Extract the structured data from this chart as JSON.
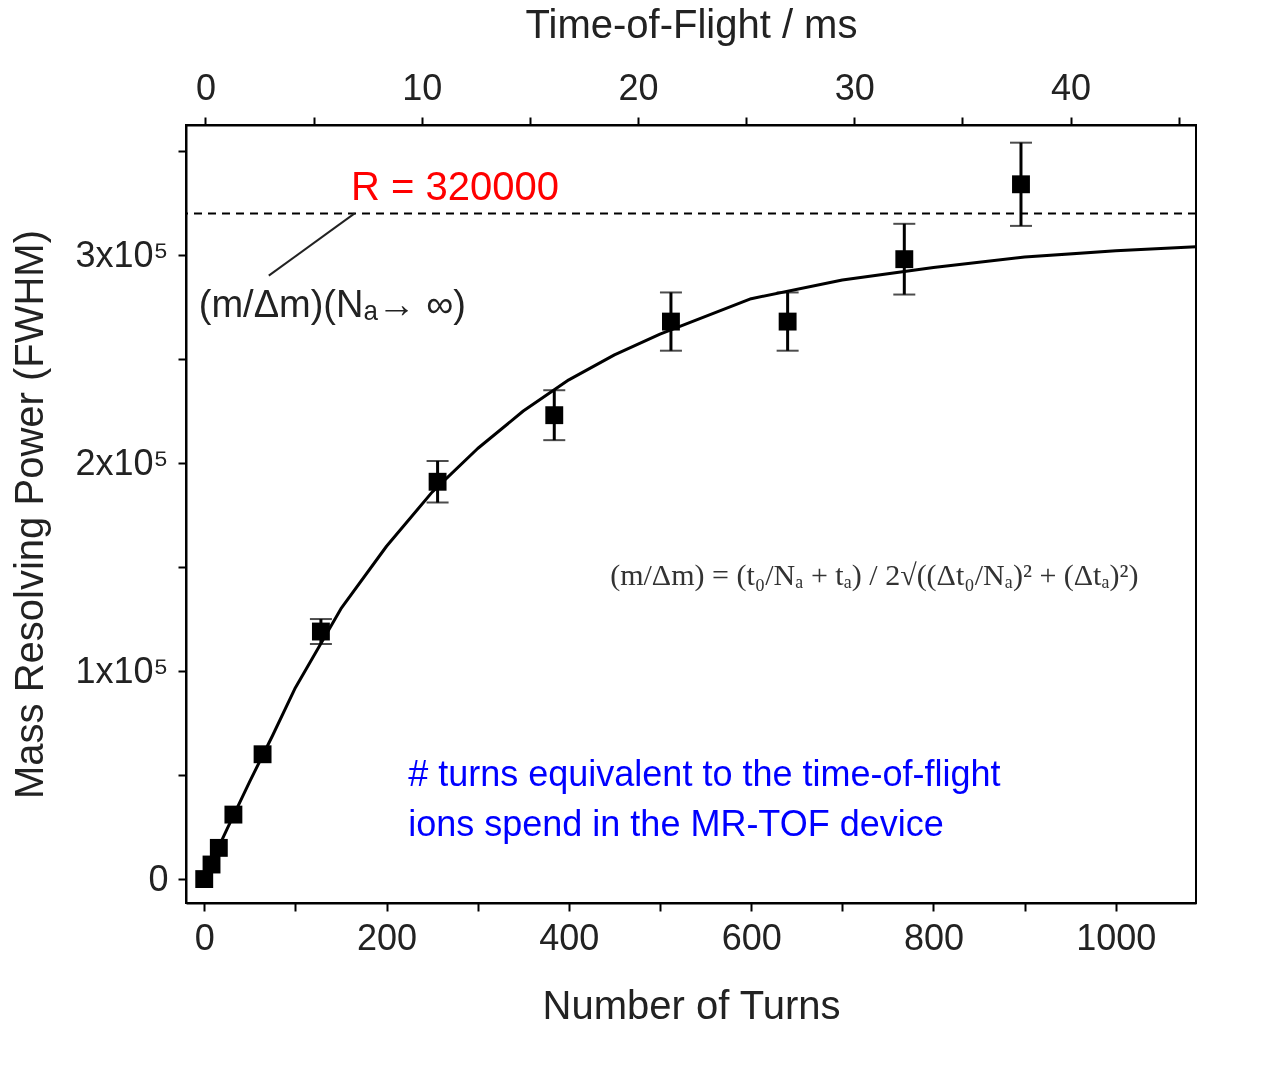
{
  "chart_data": {
    "type": "scatter",
    "xlabel": "Number of Turns",
    "ylabel": "Mass Resolving Power (FWHM)",
    "x2label": "Time-of-Flight / ms",
    "xlim": [
      -20,
      1088
    ],
    "xticks": [
      0,
      {
        "value": 100,
        "label": null
      },
      200,
      {
        "value": 300,
        "label": null
      },
      400,
      {
        "value": 500,
        "label": null
      },
      600,
      {
        "value": 700,
        "label": null
      },
      800,
      {
        "value": 900,
        "label": null
      },
      1000
    ],
    "ylim": [
      -11500,
      362500
    ],
    "yticks": [
      {
        "value": 0,
        "label": "0"
      },
      {
        "value": 50000,
        "label": null
      },
      {
        "value": 100000,
        "label": "1x10⁵"
      },
      {
        "value": 150000,
        "label": null
      },
      {
        "value": 200000,
        "label": "2x10⁵"
      },
      {
        "value": 250000,
        "label": null
      },
      {
        "value": 300000,
        "label": "3x10⁵"
      },
      {
        "value": 350000,
        "label": null
      }
    ],
    "x2lim": [
      -0.9,
      45.8
    ],
    "x2ticks": [
      0,
      {
        "value": 5,
        "label": null
      },
      10,
      {
        "value": 15,
        "label": null
      },
      20,
      {
        "value": 25,
        "label": null
      },
      30,
      {
        "value": 35,
        "label": null
      },
      40,
      {
        "value": 45,
        "label": null
      }
    ],
    "grid": false,
    "series": [
      {
        "type": "scatter",
        "color": "#000000",
        "marker": "square",
        "x": [
          0,
          4,
          8,
          16,
          32,
          64,
          128,
          256,
          384,
          512,
          640,
          768,
          896
        ],
        "values": [
          0,
          null,
          7000,
          15000,
          31000,
          60000,
          119000,
          191000,
          223000,
          268000,
          268000,
          298000,
          334000
        ],
        "errors": [
          null,
          null,
          null,
          null,
          null,
          null,
          6000,
          10000,
          12000,
          14000,
          14000,
          17000,
          20000
        ]
      },
      {
        "type": "line",
        "color": "#000000",
        "line_style": "solid",
        "x": [
          0,
          10,
          25,
          50,
          75,
          100,
          150,
          200,
          250,
          300,
          350,
          400,
          450,
          500,
          600,
          700,
          800,
          900,
          1000,
          1088
        ],
        "values": [
          0,
          10000,
          24000,
          47000,
          69000,
          92000,
          130000,
          160000,
          186000,
          207000,
          225000,
          240000,
          252000,
          262000,
          279000,
          288000,
          294000,
          299000,
          302000,
          304000
        ]
      }
    ],
    "ref_lines": [
      {
        "axis": "y",
        "value": 320000,
        "label": "R = 320000",
        "color": "#000000",
        "line_style": "dashed"
      }
    ],
    "annotations": [
      {
        "text": "(m/Δm)(Nₐ→ ∞)",
        "x": 165,
        "y": 320000
      },
      "(m/Δm) = (t₀/Nₐ + tₐ) / 2√((Δt₀/Nₐ)² + (Δtₐ)²)",
      "# turns equivalent to the time-of-flight ions spend in the MR-TOF device"
    ]
  }
}
